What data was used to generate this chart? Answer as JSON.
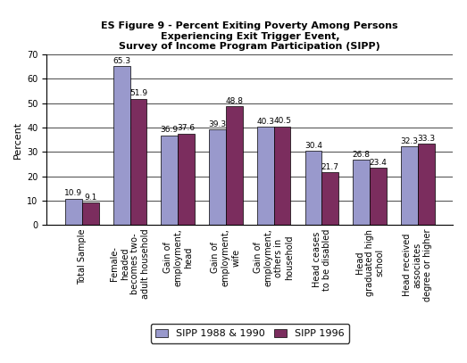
{
  "title": "ES Figure 9 - Percent Exiting Poverty Among Persons\nExperiencing Exit Trigger Event,\nSurvey of Income Program Participation (SIPP)",
  "ylabel": "Percent",
  "categories": [
    "Total Sample",
    "Female-\nheaded\nbecomes two-\nadult household",
    "Gain of\nemployment,\nhead",
    "Gain of\nemployment,\nwife",
    "Gain of\nemployment,\nothers in\nhousehold",
    "Head ceases\nto be disabled",
    "Head\ngraduated high\nschool",
    "Head received\nassociates\ndegree or higher"
  ],
  "values_1988": [
    10.9,
    65.3,
    36.9,
    39.3,
    40.3,
    30.4,
    26.8,
    32.3
  ],
  "values_1996": [
    9.1,
    51.9,
    37.6,
    48.8,
    40.5,
    21.7,
    23.4,
    33.3
  ],
  "color_1988": "#9999CC",
  "color_1996": "#7B2D5E",
  "ylim": [
    0,
    70
  ],
  "yticks": [
    0,
    10,
    20,
    30,
    40,
    50,
    60,
    70
  ],
  "legend_1988": "SIPP 1988 & 1990",
  "legend_1996": "SIPP 1996",
  "bar_width": 0.35,
  "title_fontsize": 8,
  "axis_label_fontsize": 8,
  "tick_label_fontsize": 7,
  "value_label_fontsize": 6.5,
  "legend_fontsize": 8,
  "background_color": "#FFFFFF"
}
